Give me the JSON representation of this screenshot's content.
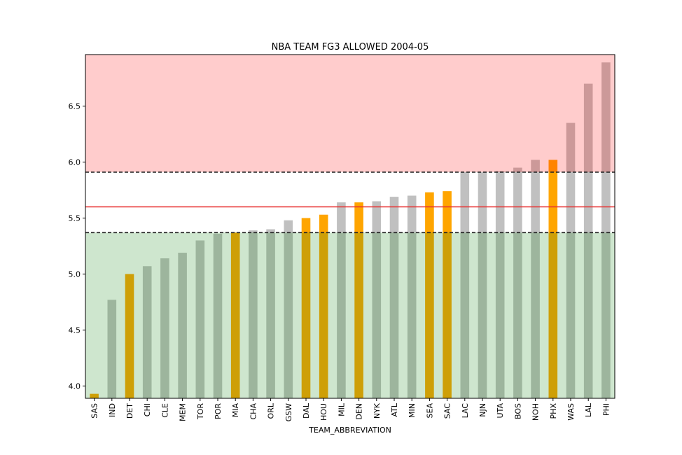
{
  "chart_data": {
    "type": "bar",
    "title": "NBA TEAM FG3 ALLOWED 2004-05",
    "xlabel": "TEAM_ABBREVIATION",
    "ylabel": "",
    "ylim": [
      3.89,
      6.96
    ],
    "yticks": [
      4.0,
      4.5,
      5.0,
      5.5,
      6.0,
      6.5
    ],
    "ytick_labels": [
      "4.0",
      "4.5",
      "5.0",
      "5.5",
      "6.0",
      "6.5"
    ],
    "categories": [
      "SAS",
      "IND",
      "DET",
      "CHI",
      "CLE",
      "MEM",
      "TOR",
      "POR",
      "MIA",
      "CHA",
      "ORL",
      "GSW",
      "DAL",
      "HOU",
      "MIL",
      "DEN",
      "NYK",
      "ATL",
      "MIN",
      "SEA",
      "SAC",
      "LAC",
      "NJN",
      "UTA",
      "BOS",
      "NOH",
      "PHX",
      "WAS",
      "LAL",
      "PHI"
    ],
    "values": [
      3.93,
      4.77,
      5.0,
      5.07,
      5.14,
      5.19,
      5.3,
      5.36,
      5.37,
      5.39,
      5.4,
      5.48,
      5.5,
      5.53,
      5.64,
      5.64,
      5.65,
      5.69,
      5.7,
      5.73,
      5.74,
      5.91,
      5.91,
      5.92,
      5.95,
      6.02,
      6.02,
      6.35,
      6.7,
      6.89
    ],
    "highlighted": [
      "SAS",
      "DET",
      "MIA",
      "DAL",
      "HOU",
      "DEN",
      "SEA",
      "SAC",
      "PHX"
    ],
    "mean_line": 5.6,
    "band_lower": 5.37,
    "band_upper": 5.91,
    "grid": false,
    "colors": {
      "bar_default": "#c0c0c0",
      "bar_highlight": "#ffa500",
      "top_zone": "#ffcccc",
      "bottom_zone": "#d0e7cc",
      "mean_line": "#e83030",
      "band_line": "#222222"
    }
  }
}
